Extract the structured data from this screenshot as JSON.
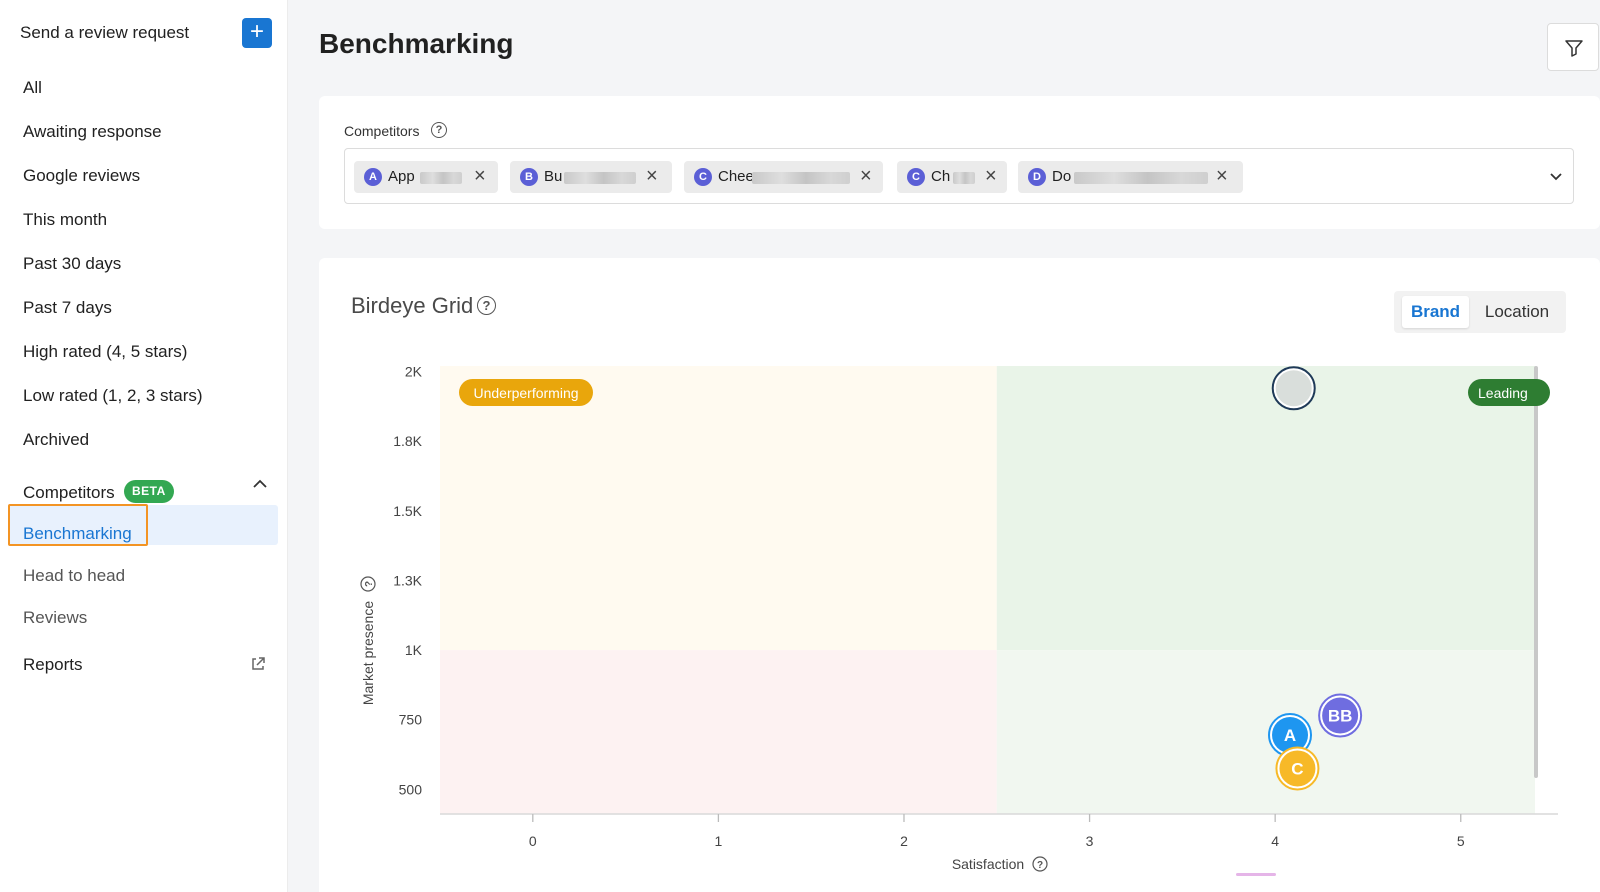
{
  "sidebar": {
    "send_request_label": "Send a review request",
    "plus_label": "+",
    "items": [
      {
        "label": "All"
      },
      {
        "label": "Awaiting response"
      },
      {
        "label": "Google reviews"
      },
      {
        "label": "This month"
      },
      {
        "label": "Past 30 days"
      },
      {
        "label": "Past 7 days"
      },
      {
        "label": "High rated (4, 5 stars)"
      },
      {
        "label": "Low rated (1, 2, 3 stars)"
      },
      {
        "label": "Archived"
      }
    ],
    "competitors_section": {
      "label": "Competitors",
      "badge": "BETA",
      "expanded": true,
      "items": [
        {
          "label": "Benchmarking",
          "active": true
        },
        {
          "label": "Head to head"
        },
        {
          "label": "Reviews"
        }
      ]
    },
    "reports_label": "Reports"
  },
  "header": {
    "title": "Benchmarking"
  },
  "competitors": {
    "label": "Competitors",
    "help": "?",
    "chips": [
      {
        "avatar": "A",
        "label": "App"
      },
      {
        "avatar": "B",
        "label": "Bu"
      },
      {
        "avatar": "C",
        "label": "Chee"
      },
      {
        "avatar": "C",
        "label": "Ch"
      },
      {
        "avatar": "D",
        "label": "Do"
      }
    ],
    "remove_glyph": "×"
  },
  "grid": {
    "title": "Birdeye Grid",
    "help": "?",
    "toggle": {
      "brand": "Brand",
      "location": "Location",
      "selected": "brand"
    }
  },
  "chart_data": {
    "type": "scatter",
    "title": "",
    "xlabel": "Satisfaction",
    "ylabel": "Market presence",
    "xlim": [
      -0.5,
      5.4
    ],
    "x_ticks": [
      0,
      1,
      2,
      3,
      4,
      5
    ],
    "y_tick_labels": [
      "2K",
      "1.8K",
      "1.5K",
      "1.3K",
      "1K",
      "750",
      "500"
    ],
    "y_ticks": [
      2000,
      1750,
      1500,
      1250,
      1000,
      750,
      500
    ],
    "ylim": [
      415,
      2020
    ],
    "quadrant_split": {
      "x": 2.5,
      "y": 1000
    },
    "quadrant_labels": {
      "top_left": "Underperforming",
      "top_right": "Leading"
    },
    "quadrant_colors": {
      "top_left": "#fffaf0",
      "top_right": "#e9f4e8",
      "bottom_left": "#fdf2f2",
      "bottom_right": "#f1f7f0"
    },
    "points": [
      {
        "label": "",
        "x": 4.1,
        "y": 1940,
        "color": "#d9dedb",
        "border": "#1f3a58"
      },
      {
        "label": "BB",
        "x": 4.35,
        "y": 765,
        "color": "#6f6de0",
        "border": "#6f6de0"
      },
      {
        "label": "A",
        "x": 4.08,
        "y": 695,
        "color": "#1e96f0",
        "border": "#1e96f0"
      },
      {
        "label": "C",
        "x": 4.12,
        "y": 575,
        "color": "#f7b928",
        "border": "#f7b928"
      }
    ]
  }
}
